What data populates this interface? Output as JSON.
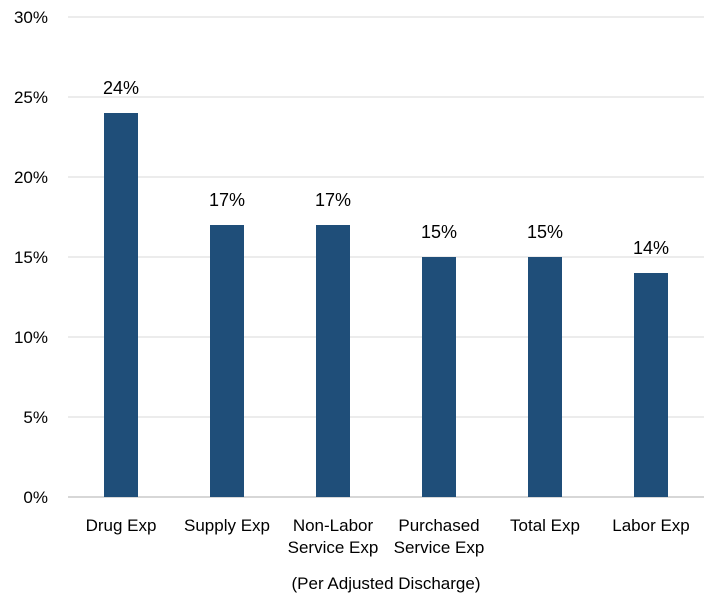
{
  "chart_data": {
    "type": "bar",
    "categories": [
      [
        "Drug Exp"
      ],
      [
        "Supply Exp"
      ],
      [
        "Non-Labor",
        "Service Exp"
      ],
      [
        "Purchased",
        "Service Exp"
      ],
      [
        "Total Exp"
      ],
      [
        "Labor Exp"
      ]
    ],
    "values": [
      24,
      17,
      17,
      15,
      15,
      14
    ],
    "data_labels": [
      "24%",
      "17%",
      "17%",
      "15%",
      "15%",
      "14%"
    ],
    "title": "",
    "xlabel": "(Per Adjusted Discharge)",
    "ylabel": "",
    "ylim": [
      0,
      30
    ],
    "yticks": [
      0,
      5,
      10,
      15,
      20,
      25,
      30
    ],
    "ytick_labels": [
      "0%",
      "5%",
      "10%",
      "15%",
      "20%",
      "25%",
      "30%"
    ],
    "grid": true,
    "legend": "none",
    "bar_color": "#1f4e79",
    "grid_color": "#d9d9d9"
  }
}
